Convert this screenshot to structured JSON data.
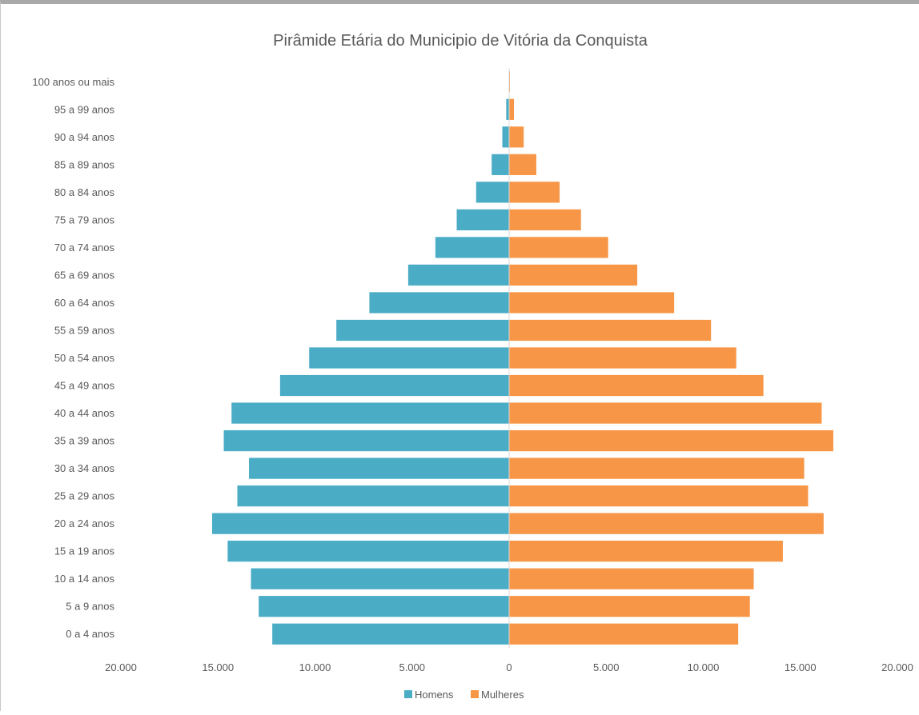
{
  "chart_data": {
    "type": "bar",
    "orientation": "horizontal",
    "title": "Pirâmide Etária do Municipio de Vitória da Conquista",
    "categories": [
      "0 a 4 anos",
      "5 a 9 anos",
      "10 a 14 anos",
      "15 a 19 anos",
      "20 a 24 anos",
      "25 a 29 anos",
      "30 a 34 anos",
      "35 a 39 anos",
      "40 a 44 anos",
      "45 a 49 anos",
      "50 a 54 anos",
      "55 a 59 anos",
      "60 a 64 anos",
      "65 a 69 anos",
      "70 a 74 anos",
      "75 a 79 anos",
      "80 a 84 anos",
      "85 a 89 anos",
      "90 a 94 anos",
      "95 a 99 anos",
      "100 anos ou mais"
    ],
    "series": [
      {
        "name": "Homens",
        "color": "#4bacc6",
        "side": "left",
        "values": [
          12200,
          12900,
          13300,
          14500,
          15300,
          14000,
          13400,
          14700,
          14300,
          11800,
          10300,
          8900,
          7200,
          5200,
          3800,
          2700,
          1700,
          900,
          350,
          150,
          20
        ]
      },
      {
        "name": "Mulheres",
        "color": "#f79646",
        "side": "right",
        "values": [
          11800,
          12400,
          12600,
          14100,
          16200,
          15400,
          15200,
          16700,
          16100,
          13100,
          11700,
          10400,
          8500,
          6600,
          5100,
          3700,
          2600,
          1400,
          750,
          250,
          40
        ]
      }
    ],
    "xlim": [
      -20000,
      20000
    ],
    "xticks": [
      -20000,
      -15000,
      -10000,
      -5000,
      0,
      5000,
      10000,
      15000,
      20000
    ],
    "xtick_labels": [
      "20.000",
      "15.000",
      "10.000",
      "5.000",
      "0",
      "5.000",
      "10.000",
      "15.000",
      "20.000"
    ],
    "grid": false,
    "legend_position": "bottom",
    "xlabel": "",
    "ylabel": ""
  }
}
